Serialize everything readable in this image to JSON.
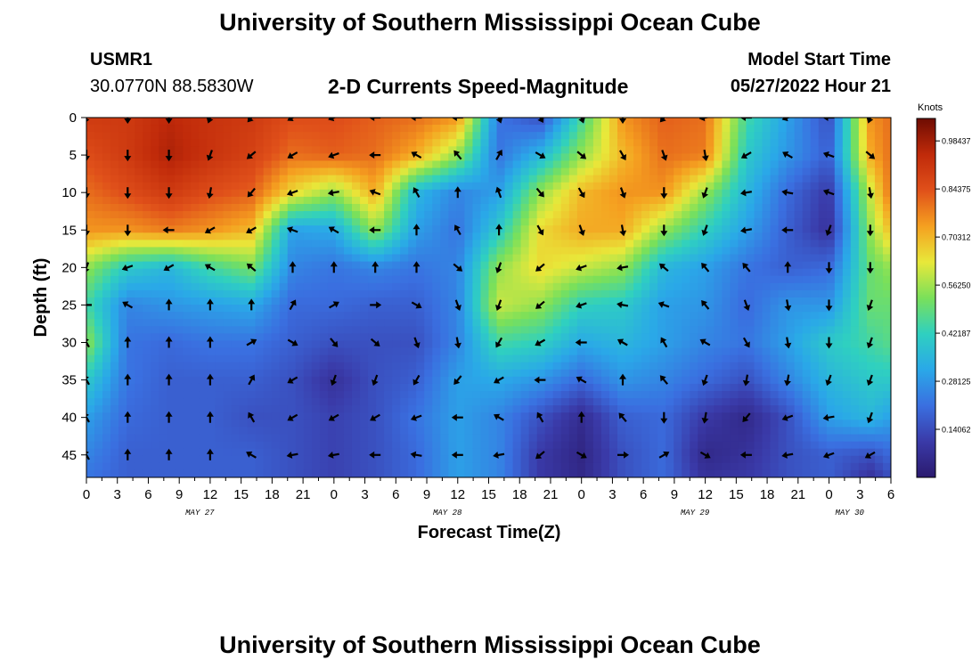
{
  "header": {
    "title": "University of Southern Mississippi Ocean Cube",
    "station_id": "USMR1",
    "station_coords": "30.0770N  88.5830W",
    "subtitle": "2-D Currents Speed-Magnitude",
    "model_start_label": "Model Start Time",
    "model_start_value": "05/27/2022 Hour 21"
  },
  "footer": {
    "title": "University of Southern Mississippi Ocean Cube"
  },
  "chart_data": {
    "type": "heatmap",
    "title": "2-D Currents Speed-Magnitude",
    "xlabel": "Forecast Time(Z)",
    "ylabel": "Depth (ft)",
    "x_hours_range": [
      0,
      78
    ],
    "x_tick_labels": [
      "0",
      "3",
      "6",
      "9",
      "12",
      "15",
      "18",
      "21",
      "0",
      "3",
      "6",
      "9",
      "12",
      "15",
      "18",
      "21",
      "0",
      "3",
      "6",
      "9",
      "12",
      "15",
      "18",
      "21",
      "0",
      "3",
      "6"
    ],
    "date_labels": [
      {
        "label": "MAY 27",
        "hour": 11
      },
      {
        "label": "MAY 28",
        "hour": 35
      },
      {
        "label": "MAY 29",
        "hour": 59
      },
      {
        "label": "MAY 30",
        "hour": 74
      }
    ],
    "y_range": [
      0,
      48
    ],
    "y_ticks": [
      0,
      5,
      10,
      15,
      20,
      25,
      30,
      35,
      40,
      45
    ],
    "colorbar": {
      "unit": "Knots",
      "min": 0.0,
      "max": 1.05,
      "tick_values": [
        0.14062,
        0.28125,
        0.42187,
        0.5625,
        0.70312,
        0.84375,
        0.98437
      ],
      "tick_labels": [
        "0.14062",
        "0.28125",
        "0.42187",
        "0.56250",
        "0.70312",
        "0.84375",
        "0.98437"
      ],
      "colors": [
        "#2b1a6e",
        "#3a3aa8",
        "#3a6fe0",
        "#2aa8e8",
        "#2fd0c0",
        "#7ae05a",
        "#e8e83a",
        "#f5a020",
        "#e0501a",
        "#c02a0a",
        "#6e0c02"
      ]
    },
    "grid": "off",
    "vector_depths_ft": [
      0,
      5,
      10,
      15,
      20,
      25,
      30,
      35,
      40,
      45
    ],
    "vector_hours": [
      0,
      4,
      8,
      12,
      16,
      20,
      24,
      28,
      32,
      36,
      40,
      44,
      48,
      52,
      56,
      60,
      64,
      68,
      72,
      76
    ],
    "speed_hours": [
      0,
      4,
      8,
      12,
      16,
      20,
      24,
      28,
      32,
      36,
      40,
      44,
      48,
      52,
      56,
      60,
      64,
      68,
      72,
      76,
      78
    ],
    "speed_depths_ft": [
      0,
      5,
      10,
      15,
      20,
      25,
      30,
      35,
      40,
      45,
      48
    ],
    "speed_knots": [
      [
        0.9,
        0.9,
        0.95,
        0.92,
        0.9,
        0.85,
        0.85,
        0.82,
        0.8,
        0.75,
        0.22,
        0.15,
        0.45,
        0.75,
        0.82,
        0.8,
        0.45,
        0.3,
        0.15,
        0.75,
        0.8
      ],
      [
        0.85,
        0.9,
        0.97,
        0.92,
        0.88,
        0.8,
        0.82,
        0.8,
        0.72,
        0.55,
        0.22,
        0.35,
        0.55,
        0.7,
        0.8,
        0.78,
        0.4,
        0.28,
        0.18,
        0.72,
        0.8
      ],
      [
        0.8,
        0.85,
        0.9,
        0.85,
        0.82,
        0.65,
        0.55,
        0.72,
        0.35,
        0.25,
        0.3,
        0.55,
        0.7,
        0.75,
        0.75,
        0.55,
        0.35,
        0.2,
        0.1,
        0.6,
        0.8
      ],
      [
        0.75,
        0.75,
        0.78,
        0.75,
        0.7,
        0.3,
        0.32,
        0.55,
        0.3,
        0.22,
        0.4,
        0.65,
        0.72,
        0.72,
        0.55,
        0.42,
        0.3,
        0.18,
        0.08,
        0.55,
        0.7
      ],
      [
        0.55,
        0.4,
        0.35,
        0.45,
        0.52,
        0.25,
        0.22,
        0.25,
        0.22,
        0.25,
        0.55,
        0.65,
        0.6,
        0.55,
        0.35,
        0.3,
        0.22,
        0.18,
        0.2,
        0.5,
        0.55
      ],
      [
        0.45,
        0.25,
        0.28,
        0.3,
        0.32,
        0.2,
        0.2,
        0.18,
        0.18,
        0.25,
        0.6,
        0.55,
        0.42,
        0.4,
        0.3,
        0.28,
        0.2,
        0.28,
        0.28,
        0.5,
        0.5
      ],
      [
        0.55,
        0.22,
        0.2,
        0.22,
        0.22,
        0.18,
        0.15,
        0.15,
        0.15,
        0.25,
        0.45,
        0.42,
        0.32,
        0.35,
        0.3,
        0.25,
        0.22,
        0.3,
        0.4,
        0.45,
        0.48
      ],
      [
        0.4,
        0.22,
        0.18,
        0.18,
        0.18,
        0.15,
        0.08,
        0.15,
        0.18,
        0.3,
        0.32,
        0.28,
        0.2,
        0.28,
        0.25,
        0.2,
        0.15,
        0.25,
        0.35,
        0.4,
        0.4
      ],
      [
        0.3,
        0.2,
        0.18,
        0.18,
        0.15,
        0.15,
        0.12,
        0.15,
        0.22,
        0.3,
        0.25,
        0.15,
        0.06,
        0.18,
        0.2,
        0.1,
        0.05,
        0.15,
        0.3,
        0.35,
        0.3
      ],
      [
        0.25,
        0.18,
        0.18,
        0.18,
        0.18,
        0.15,
        0.12,
        0.15,
        0.2,
        0.3,
        0.25,
        0.1,
        0.04,
        0.15,
        0.2,
        0.05,
        0.08,
        0.15,
        0.18,
        0.15,
        0.2
      ],
      [
        0.22,
        0.18,
        0.18,
        0.18,
        0.18,
        0.15,
        0.12,
        0.15,
        0.2,
        0.3,
        0.25,
        0.1,
        0.05,
        0.15,
        0.2,
        0.08,
        0.1,
        0.15,
        0.18,
        0.08,
        0.15
      ]
    ],
    "vector_directions_deg": [
      [
        200,
        180,
        180,
        200,
        220,
        240,
        250,
        270,
        270,
        270,
        160,
        150,
        160,
        180,
        220,
        260,
        270,
        250,
        270,
        200
      ],
      [
        180,
        180,
        180,
        200,
        230,
        240,
        250,
        270,
        300,
        320,
        30,
        120,
        130,
        150,
        160,
        170,
        240,
        300,
        290,
        130
      ],
      [
        180,
        180,
        180,
        190,
        220,
        250,
        260,
        290,
        330,
        0,
        340,
        140,
        150,
        160,
        180,
        200,
        260,
        280,
        290,
        170
      ],
      [
        180,
        180,
        270,
        240,
        240,
        290,
        300,
        270,
        0,
        330,
        0,
        150,
        160,
        170,
        180,
        200,
        260,
        270,
        200,
        180
      ],
      [
        200,
        250,
        240,
        300,
        310,
        0,
        0,
        0,
        0,
        130,
        200,
        230,
        250,
        260,
        310,
        320,
        320,
        0,
        180,
        180
      ],
      [
        270,
        300,
        0,
        0,
        0,
        30,
        60,
        90,
        120,
        160,
        200,
        230,
        250,
        280,
        290,
        320,
        160,
        170,
        180,
        200
      ],
      [
        330,
        0,
        0,
        0,
        60,
        120,
        140,
        130,
        160,
        170,
        210,
        240,
        270,
        300,
        330,
        300,
        150,
        170,
        180,
        200
      ],
      [
        330,
        0,
        0,
        0,
        30,
        240,
        200,
        200,
        210,
        220,
        240,
        270,
        300,
        0,
        320,
        200,
        190,
        190,
        200,
        200
      ],
      [
        330,
        0,
        0,
        0,
        330,
        240,
        240,
        240,
        250,
        270,
        300,
        330,
        0,
        320,
        180,
        190,
        220,
        250,
        260,
        200
      ],
      [
        330,
        0,
        0,
        0,
        300,
        260,
        260,
        270,
        280,
        270,
        260,
        230,
        120,
        90,
        60,
        120,
        270,
        260,
        250,
        240
      ]
    ]
  }
}
